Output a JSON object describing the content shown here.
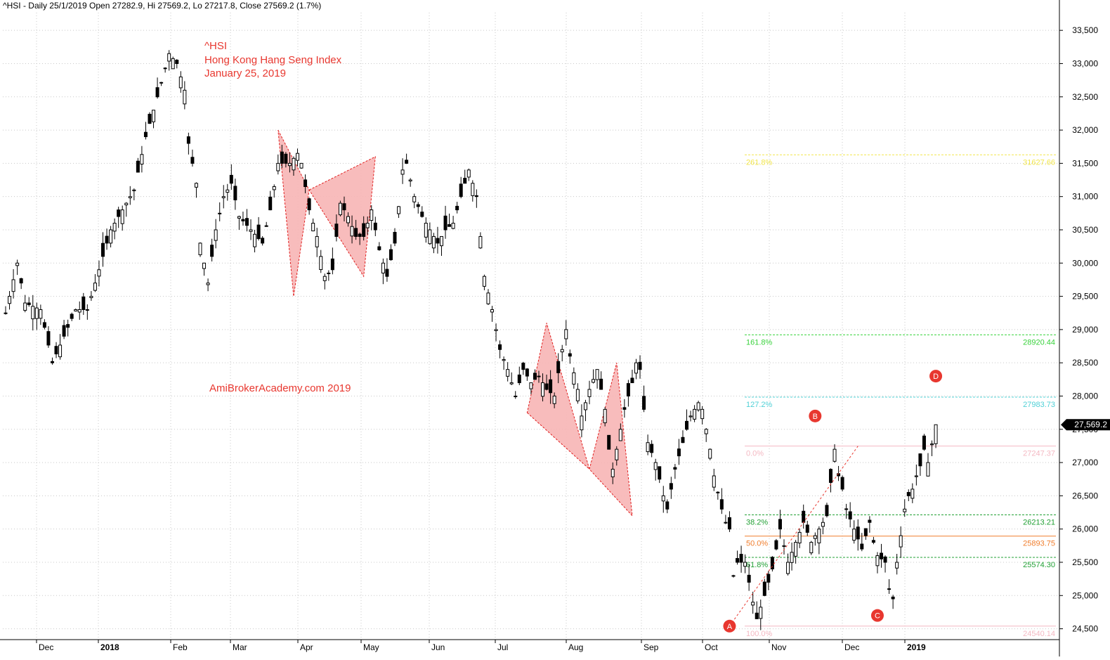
{
  "header": {
    "text": "^HSI - Daily 25/1/2019 Open 27282.9, Hi 27569.2, Lo 27217.8, Close 27569.2 (1.7%)"
  },
  "annotation": {
    "lines": [
      "^HSI",
      "Hong Kong Hang Seng Index",
      "January 25, 2019"
    ],
    "watermark": "AmiBrokerAcademy.com  2019",
    "color": "#e8372f"
  },
  "chart_data": {
    "type": "candlestick",
    "title": "^HSI",
    "ylim": [
      24300,
      33800
    ],
    "y_ticks": [
      {
        "value": 24500,
        "label": "24,500"
      },
      {
        "value": 25000,
        "label": "25,000"
      },
      {
        "value": 25500,
        "label": "25,500"
      },
      {
        "value": 26000,
        "label": "26,000"
      },
      {
        "value": 26500,
        "label": "26,500"
      },
      {
        "value": 27000,
        "label": "27,000"
      },
      {
        "value": 27500,
        "label": "27,500"
      },
      {
        "value": 28000,
        "label": "28,000"
      },
      {
        "value": 28500,
        "label": "28,500"
      },
      {
        "value": 29000,
        "label": "29,000"
      },
      {
        "value": 29500,
        "label": "29,500"
      },
      {
        "value": 30000,
        "label": "30,000"
      },
      {
        "value": 30500,
        "label": "30,500"
      },
      {
        "value": 31000,
        "label": "31,000"
      },
      {
        "value": 31500,
        "label": "31,500"
      },
      {
        "value": 32000,
        "label": "32,000"
      },
      {
        "value": 32500,
        "label": "32,500"
      },
      {
        "value": 33000,
        "label": "33,000"
      },
      {
        "value": 33500,
        "label": "33,500"
      }
    ],
    "x_ticks": [
      {
        "label": "Dec",
        "bold": false
      },
      {
        "label": "2018",
        "bold": true
      },
      {
        "label": "Feb",
        "bold": false
      },
      {
        "label": "Mar",
        "bold": false
      },
      {
        "label": "Apr",
        "bold": false
      },
      {
        "label": "May",
        "bold": false
      },
      {
        "label": "Jun",
        "bold": false
      },
      {
        "label": "Jul",
        "bold": false
      },
      {
        "label": "Aug",
        "bold": false
      },
      {
        "label": "Sep",
        "bold": false
      },
      {
        "label": "Oct",
        "bold": false
      },
      {
        "label": "Nov",
        "bold": false
      },
      {
        "label": "Dec",
        "bold": false
      },
      {
        "label": "2019",
        "bold": true
      }
    ],
    "last_close_label": "27,569.2",
    "path_points": [
      [
        0,
        29250
      ],
      [
        3,
        30000
      ],
      [
        5,
        29400
      ],
      [
        9,
        29300
      ],
      [
        12,
        28500
      ],
      [
        15,
        28900
      ],
      [
        18,
        29300
      ],
      [
        21,
        29300
      ],
      [
        24,
        29900
      ],
      [
        27,
        30500
      ],
      [
        30,
        30800
      ],
      [
        33,
        31100
      ],
      [
        36,
        31900
      ],
      [
        39,
        32500
      ],
      [
        42,
        33150
      ],
      [
        44,
        33000
      ],
      [
        46,
        32600
      ],
      [
        47,
        31800
      ],
      [
        49,
        31200
      ],
      [
        50,
        30300
      ],
      [
        52,
        29700
      ],
      [
        54,
        30500
      ],
      [
        56,
        31000
      ],
      [
        58,
        31200
      ],
      [
        60,
        30700
      ],
      [
        63,
        30500
      ],
      [
        66,
        30300
      ],
      [
        68,
        30800
      ],
      [
        70,
        31500
      ],
      [
        73,
        31500
      ],
      [
        75,
        31650
      ],
      [
        76,
        31500
      ],
      [
        78,
        30800
      ],
      [
        80,
        30400
      ],
      [
        82,
        29800
      ],
      [
        84,
        29900
      ],
      [
        86,
        30900
      ],
      [
        88,
        30700
      ],
      [
        90,
        30400
      ],
      [
        92,
        30400
      ],
      [
        94,
        30800
      ],
      [
        96,
        30200
      ],
      [
        98,
        29800
      ],
      [
        100,
        30300
      ],
      [
        102,
        31400
      ],
      [
        103,
        31500
      ],
      [
        105,
        31000
      ],
      [
        107,
        30700
      ],
      [
        109,
        30500
      ],
      [
        111,
        30300
      ],
      [
        113,
        30500
      ],
      [
        115,
        30600
      ],
      [
        117,
        31000
      ],
      [
        119,
        31400
      ],
      [
        121,
        31000
      ],
      [
        122,
        30400
      ],
      [
        123,
        29800
      ],
      [
        125,
        29300
      ],
      [
        127,
        28700
      ],
      [
        129,
        28400
      ],
      [
        131,
        28000
      ],
      [
        133,
        28400
      ],
      [
        135,
        28200
      ],
      [
        137,
        28300
      ],
      [
        139,
        28100
      ],
      [
        141,
        28000
      ],
      [
        143,
        28700
      ],
      [
        144,
        29000
      ],
      [
        145,
        28600
      ],
      [
        147,
        28100
      ],
      [
        148,
        27700
      ],
      [
        150,
        28100
      ],
      [
        152,
        28400
      ],
      [
        154,
        27800
      ],
      [
        155,
        27200
      ],
      [
        156,
        26900
      ],
      [
        157,
        27200
      ],
      [
        159,
        27800
      ],
      [
        161,
        28200
      ],
      [
        162,
        28500
      ],
      [
        163,
        28400
      ],
      [
        164,
        27800
      ],
      [
        165,
        27300
      ],
      [
        167,
        27000
      ],
      [
        169,
        26500
      ],
      [
        170,
        26300
      ],
      [
        172,
        26900
      ],
      [
        174,
        27300
      ],
      [
        176,
        27700
      ],
      [
        178,
        27900
      ],
      [
        179,
        27800
      ],
      [
        181,
        27200
      ],
      [
        182,
        26800
      ],
      [
        184,
        26300
      ],
      [
        185,
        26100
      ],
      [
        186,
        26000
      ],
      [
        187,
        25300
      ],
      [
        188,
        25500
      ],
      [
        190,
        25500
      ],
      [
        191,
        25200
      ],
      [
        192,
        24900
      ],
      [
        193,
        24650
      ],
      [
        195,
        25000
      ],
      [
        197,
        25400
      ],
      [
        199,
        26000
      ],
      [
        201,
        25500
      ],
      [
        203,
        25800
      ],
      [
        205,
        26100
      ],
      [
        207,
        25800
      ],
      [
        209,
        26000
      ],
      [
        211,
        26200
      ],
      [
        212,
        26700
      ],
      [
        213,
        27200
      ],
      [
        214,
        26800
      ],
      [
        215,
        26600
      ],
      [
        216,
        26300
      ],
      [
        218,
        26000
      ],
      [
        220,
        25700
      ],
      [
        222,
        26100
      ],
      [
        223,
        25800
      ],
      [
        224,
        25600
      ],
      [
        226,
        25500
      ],
      [
        227,
        25100
      ],
      [
        228,
        24950
      ],
      [
        229,
        25500
      ],
      [
        230,
        25900
      ],
      [
        231,
        26300
      ],
      [
        232,
        26500
      ],
      [
        233,
        26600
      ],
      [
        234,
        26800
      ],
      [
        235,
        26950
      ],
      [
        236,
        27200
      ],
      [
        237,
        27000
      ],
      [
        238,
        27280
      ],
      [
        239,
        27569
      ]
    ],
    "last_candle": {
      "open": 27282.9,
      "high": 27569.2,
      "low": 27217.8,
      "close": 27569.2
    },
    "harmonic_patterns": [
      {
        "points": [
          [
            70,
            32000
          ],
          [
            78,
            31100
          ],
          [
            95,
            31600
          ],
          [
            92,
            29800
          ],
          [
            74,
            29500
          ]
        ]
      },
      {
        "points": [
          [
            134,
            27750
          ],
          [
            150,
            26900
          ],
          [
            157,
            28500
          ],
          [
            161,
            26200
          ],
          [
            139,
            29100
          ]
        ]
      }
    ],
    "abcd": {
      "points": [
        {
          "label": "A",
          "x": 186,
          "y": 24540
        },
        {
          "label": "B",
          "x": 208,
          "y": 27700
        },
        {
          "label": "C",
          "x": 224,
          "y": 24700
        },
        {
          "label": "D",
          "x": 239,
          "y": 28300
        }
      ],
      "trend_start": {
        "x": 186,
        "y": 24540
      },
      "trend_end": {
        "x": 219,
        "y": 27247
      },
      "color": "#e8372f"
    },
    "fib_levels": [
      {
        "pct": "261.8%",
        "value": 31627.66,
        "value_label": "31627.66",
        "color": "#f2e64a",
        "style": "dashed"
      },
      {
        "pct": "161.8%",
        "value": 28920.44,
        "value_label": "28920.44",
        "color": "#39d23c",
        "style": "dashed"
      },
      {
        "pct": "127.2%",
        "value": 27983.73,
        "value_label": "27983.73",
        "color": "#4fd0d6",
        "style": "dashed"
      },
      {
        "pct": "0.0%",
        "value": 27247.37,
        "value_label": "27247.37",
        "color": "#f4b8c2",
        "style": "solid"
      },
      {
        "pct": "38.2%",
        "value": 26213.21,
        "value_label": "26213.21",
        "color": "#22a035",
        "style": "dashed"
      },
      {
        "pct": "50.0%",
        "value": 25893.75,
        "value_label": "25893.75",
        "color": "#f07d2c",
        "style": "solid"
      },
      {
        "pct": "61.8%",
        "value": 25574.3,
        "value_label": "25574.30",
        "color": "#22a035",
        "style": "dashed"
      },
      {
        "pct": "100.0%",
        "value": 24540.14,
        "value_label": "24540.14",
        "color": "#f4b8c2",
        "style": "solid"
      }
    ],
    "colors": {
      "up": "#ffffff",
      "down": "#000000",
      "grid": "#c8c8c8",
      "pattern_fill": "#f7b5b5",
      "pattern_stroke": "#e02020"
    },
    "grid": true
  }
}
